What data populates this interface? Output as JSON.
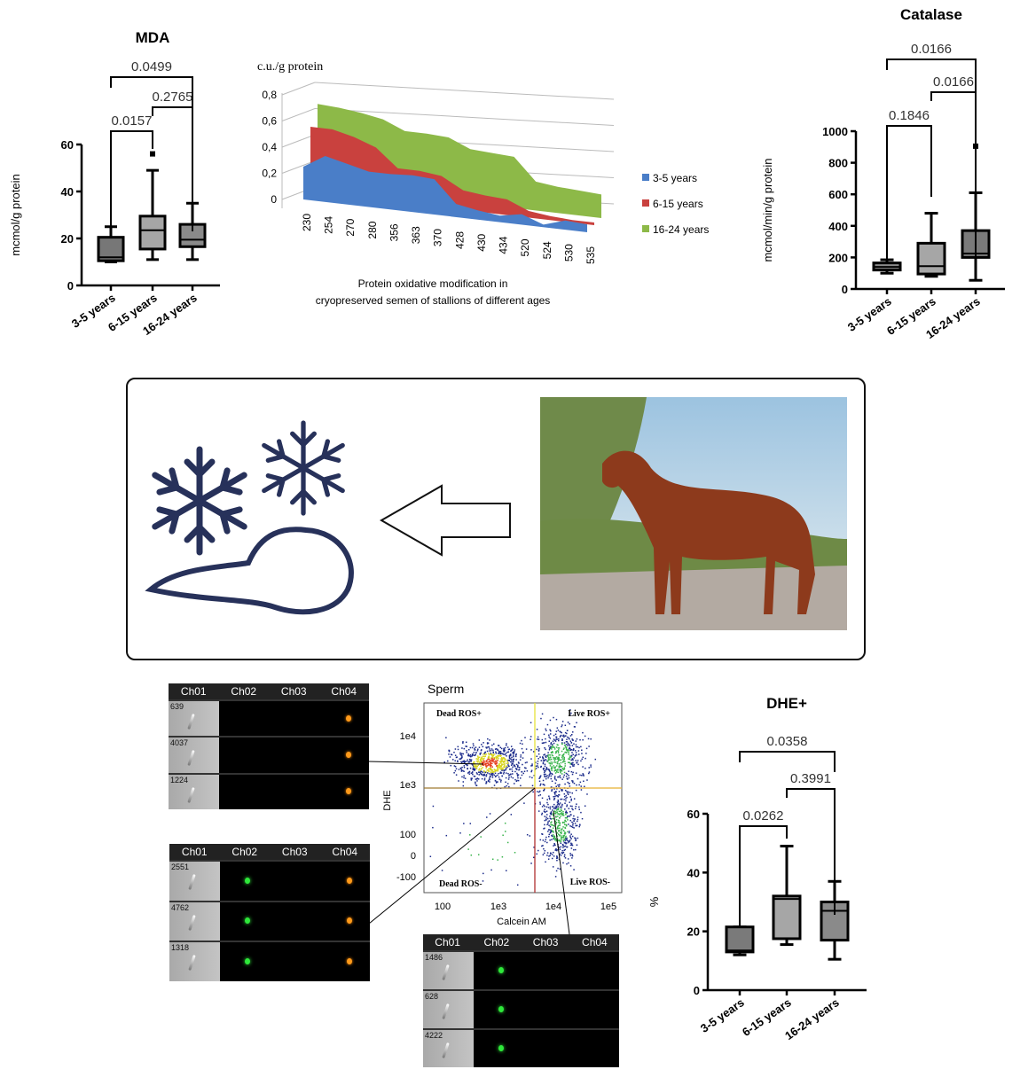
{
  "mda_chart": {
    "type": "box",
    "title": "MDA",
    "ylabel": "mcmol/g protein",
    "ylim": [
      0,
      60
    ],
    "yticks": [
      0,
      20,
      40,
      60
    ],
    "categories": [
      "3-5 years",
      "6-15 years",
      "16-24 years"
    ],
    "boxes": [
      {
        "min": 10,
        "q1": 10.5,
        "median": 12,
        "q3": 20.5,
        "max": 25,
        "outliers": []
      },
      {
        "min": 11,
        "q1": 15.5,
        "median": 23.5,
        "q3": 29.5,
        "max": 49,
        "outliers": [
          56
        ]
      },
      {
        "min": 11,
        "q1": 16.5,
        "median": 19.5,
        "q3": 26,
        "max": 35,
        "outliers": []
      }
    ],
    "comparisons": [
      {
        "a": 0,
        "b": 1,
        "p": "0.0157"
      },
      {
        "a": 1,
        "b": 2,
        "p": "0.2765"
      },
      {
        "a": 0,
        "b": 2,
        "p": "0.0499"
      }
    ],
    "fills": [
      "#777777",
      "#a6a6a6",
      "#8a8a8a"
    ]
  },
  "protein_chart": {
    "type": "area",
    "title": "Protein oxidative modification in cryopreserved semen of stallions of different ages",
    "ylabel": "c.u./g protein",
    "ylim": [
      0,
      0.8
    ],
    "yticks": [
      "0",
      "0,2",
      "0,4",
      "0,6",
      "0,8"
    ],
    "categories": [
      "230",
      "254",
      "270",
      "280",
      "356",
      "363",
      "370",
      "428",
      "430",
      "434",
      "520",
      "524",
      "530",
      "535"
    ],
    "series": [
      {
        "name": "3-5 years",
        "color": "#4a7ec8",
        "values": [
          0.25,
          0.35,
          0.31,
          0.27,
          0.27,
          0.28,
          0.27,
          0.1,
          0.07,
          0.05,
          0.08,
          0.02,
          0.07,
          0.06
        ]
      },
      {
        "name": "6-15 years",
        "color": "#c9413e",
        "values": [
          0.5,
          0.5,
          0.46,
          0.4,
          0.26,
          0.26,
          0.24,
          0.15,
          0.13,
          0.12,
          0.05,
          0.03,
          0.02,
          0.02
        ]
      },
      {
        "name": "16-24 years",
        "color": "#8db948",
        "values": [
          0.62,
          0.61,
          0.59,
          0.56,
          0.49,
          0.49,
          0.48,
          0.41,
          0.4,
          0.39,
          0.22,
          0.2,
          0.19,
          0.18
        ]
      }
    ],
    "legend": "right"
  },
  "catalase_chart": {
    "type": "box",
    "title": "Catalase",
    "ylabel": "mcmol/min/g protein",
    "ylim": [
      0,
      1000
    ],
    "yticks": [
      0,
      200,
      400,
      600,
      800,
      1000
    ],
    "categories": [
      "3-5 years",
      "6-15 years",
      "16-24 years"
    ],
    "boxes": [
      {
        "min": 100,
        "q1": 120,
        "median": 140,
        "q3": 165,
        "max": 185,
        "outliers": []
      },
      {
        "min": 80,
        "q1": 95,
        "median": 145,
        "q3": 290,
        "max": 480,
        "outliers": []
      },
      {
        "min": 55,
        "q1": 200,
        "median": 225,
        "q3": 370,
        "max": 610,
        "outliers": [
          905
        ]
      }
    ],
    "comparisons": [
      {
        "a": 0,
        "b": 1,
        "p": "0.1846"
      },
      {
        "a": 1,
        "b": 2,
        "p": "0.0166"
      },
      {
        "a": 0,
        "b": 2,
        "p": "0.0166"
      }
    ],
    "fills": [
      "#8a8a8a",
      "#a6a6a6",
      "#7a7a7a"
    ]
  },
  "dhe_chart": {
    "type": "box",
    "title": "DHE+",
    "ylabel": "%",
    "ylim": [
      0,
      60
    ],
    "yticks": [
      0,
      20,
      40,
      60
    ],
    "categories": [
      "3-5 years",
      "6-15 years",
      "16-24 years"
    ],
    "boxes": [
      {
        "min": 12,
        "q1": 13,
        "median": 13.5,
        "q3": 21.5,
        "max": 21.5,
        "outliers": []
      },
      {
        "min": 15.5,
        "q1": 17.5,
        "median": 31,
        "q3": 32,
        "max": 49,
        "outliers": []
      },
      {
        "min": 10.5,
        "q1": 17,
        "median": 27,
        "q3": 30,
        "max": 37,
        "outliers": []
      }
    ],
    "comparisons": [
      {
        "a": 0,
        "b": 1,
        "p": "0.0262"
      },
      {
        "a": 1,
        "b": 2,
        "p": "0.3991"
      },
      {
        "a": 0,
        "b": 2,
        "p": "0.0358"
      }
    ],
    "fills": [
      "#7a7a7a",
      "#a6a6a6",
      "#8a8a8a"
    ]
  },
  "flow": {
    "title": "Sperm",
    "xlabel": "Calcein AM",
    "ylabel": "DHE",
    "xticks": [
      "100",
      "1e3",
      "1e4",
      "1e5"
    ],
    "yticks": [
      "1e4",
      "1e3",
      "100",
      "0",
      "-100"
    ],
    "quadrants": {
      "tl": "Dead ROS+",
      "tr": "Live ROS+",
      "bl": "Dead ROS-",
      "br": "Live ROS-"
    },
    "channels": [
      "Ch01",
      "Ch02",
      "Ch03",
      "Ch04"
    ],
    "panels": [
      {
        "ids": [
          "639",
          "4037",
          "1224"
        ],
        "green": [
          false,
          false,
          false
        ],
        "orange": [
          true,
          true,
          true
        ]
      },
      {
        "ids": [
          "2551",
          "4762",
          "1318"
        ],
        "green": [
          true,
          true,
          true
        ],
        "orange": [
          true,
          true,
          true
        ]
      },
      {
        "ids": [
          "1486",
          "628",
          "4222"
        ],
        "green": [
          true,
          true,
          true
        ],
        "orange": [
          false,
          false,
          false
        ]
      }
    ]
  },
  "colors": {
    "icon": "#27315a",
    "axis": "#000000"
  }
}
